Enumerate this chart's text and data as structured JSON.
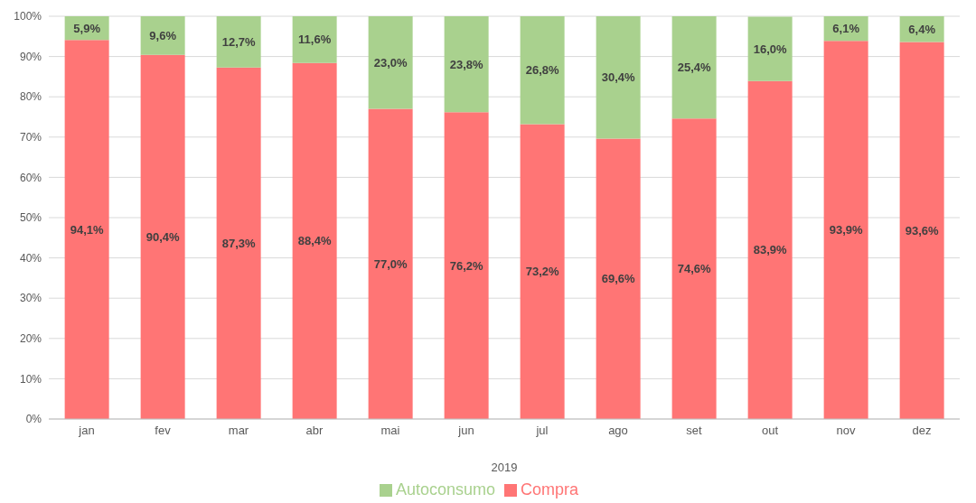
{
  "chart_data": {
    "type": "bar",
    "stacked": true,
    "xlabel": "2019",
    "categories": [
      "jan",
      "fev",
      "mar",
      "abr",
      "mai",
      "jun",
      "jul",
      "ago",
      "set",
      "out",
      "nov",
      "dez"
    ],
    "series": [
      {
        "name": "Compra",
        "color": "#ff7575",
        "values": [
          94.1,
          90.4,
          87.3,
          88.4,
          77.0,
          76.2,
          73.2,
          69.6,
          74.6,
          83.9,
          93.9,
          93.6
        ],
        "value_labels": [
          "94,1%",
          "90,4%",
          "87,3%",
          "88,4%",
          "77,0%",
          "76,2%",
          "73,2%",
          "69,6%",
          "74,6%",
          "83,9%",
          "93,9%",
          "93,6%"
        ]
      },
      {
        "name": "Autoconsumo",
        "color": "#a9d18e",
        "values": [
          5.9,
          9.6,
          12.7,
          11.6,
          23.0,
          23.8,
          26.8,
          30.4,
          25.4,
          16.0,
          6.1,
          6.4
        ],
        "value_labels": [
          "5,9%",
          "9,6%",
          "12,7%",
          "11,6%",
          "23,0%",
          "23,8%",
          "26,8%",
          "30,4%",
          "25,4%",
          "16,0%",
          "6,1%",
          "6,4%"
        ]
      }
    ],
    "ylim": [
      0,
      100
    ],
    "yticks": [
      {
        "value": 0,
        "label": "0%"
      },
      {
        "value": 10,
        "label": "10%"
      },
      {
        "value": 20,
        "label": "20%"
      },
      {
        "value": 30,
        "label": "30%"
      },
      {
        "value": 40,
        "label": "40%"
      },
      {
        "value": 50,
        "label": "50%"
      },
      {
        "value": 60,
        "label": "60%"
      },
      {
        "value": 70,
        "label": "70%"
      },
      {
        "value": 80,
        "label": "80%"
      },
      {
        "value": 90,
        "label": "90%"
      },
      {
        "value": 100,
        "label": "100%"
      }
    ],
    "grid": "y",
    "legend": "bottom"
  }
}
